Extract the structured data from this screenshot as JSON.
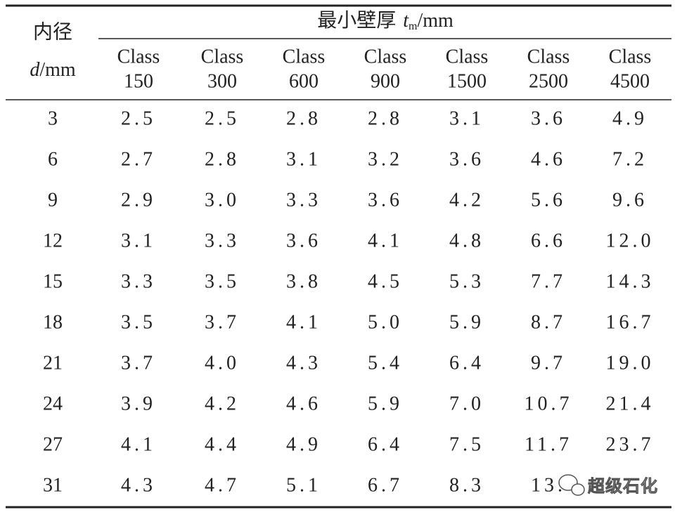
{
  "header": {
    "diameter_label": "内径",
    "diameter_symbol": "d",
    "diameter_unit": "/mm",
    "thickness_label": "最小壁厚",
    "thickness_symbol": "t",
    "thickness_subscript": "m",
    "thickness_unit": "/mm",
    "columns": [
      [
        "Class",
        "150"
      ],
      [
        "Class",
        "300"
      ],
      [
        "Class",
        "600"
      ],
      [
        "Class",
        "900"
      ],
      [
        "Class",
        "1500"
      ],
      [
        "Class",
        "2500"
      ],
      [
        "Class",
        "4500"
      ]
    ]
  },
  "table": {
    "rows": [
      [
        "3",
        "2.5",
        "2.5",
        "2.8",
        "2.8",
        "3.1",
        "3.6",
        "4.9"
      ],
      [
        "6",
        "2.7",
        "2.8",
        "3.1",
        "3.2",
        "3.6",
        "4.6",
        "7.2"
      ],
      [
        "9",
        "2.9",
        "3.0",
        "3.3",
        "3.6",
        "4.2",
        "5.6",
        "9.6"
      ],
      [
        "12",
        "3.1",
        "3.3",
        "3.6",
        "4.1",
        "4.8",
        "6.6",
        "12.0"
      ],
      [
        "15",
        "3.3",
        "3.5",
        "3.8",
        "4.5",
        "5.3",
        "7.7",
        "14.3"
      ],
      [
        "18",
        "3.5",
        "3.7",
        "4.1",
        "5.0",
        "5.9",
        "8.7",
        "16.7"
      ],
      [
        "21",
        "3.7",
        "4.0",
        "4.3",
        "5.4",
        "6.4",
        "9.7",
        "19.0"
      ],
      [
        "24",
        "3.9",
        "4.2",
        "4.6",
        "5.9",
        "7.0",
        "10.7",
        "21.4"
      ],
      [
        "27",
        "4.1",
        "4.4",
        "4.9",
        "6.4",
        "7.5",
        "11.7",
        "23.7"
      ],
      [
        "31",
        "4.3",
        "4.7",
        "5.1",
        "6.7",
        "8.3",
        "13.",
        ""
      ]
    ]
  },
  "watermark": "超级石化"
}
